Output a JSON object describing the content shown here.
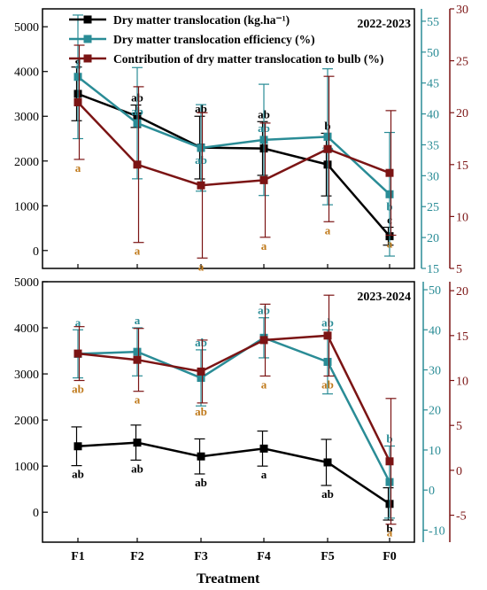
{
  "colors": {
    "s1": "#000000",
    "s2": "#2a8c96",
    "s3": "#7b1414",
    "letter_black": "#000000",
    "letter_teal": "#2a8c96",
    "letter_gold": "#c07a1c"
  },
  "legend": [
    {
      "label": "Dry matter translocation (kg.ha⁻¹)"
    },
    {
      "label": "Dry matter translocation efficiency (%)"
    },
    {
      "label": "Contribution of dry matter translocation to bulb (%)"
    }
  ],
  "xlabel": "Treatment",
  "chart_data": [
    {
      "type": "line",
      "title": "2022-2023",
      "categories": [
        "F1",
        "F2",
        "F3",
        "F4",
        "F5",
        "F0"
      ],
      "xlabel": "Treatment",
      "axes": {
        "left": {
          "range": [
            -400,
            5400
          ],
          "ticks": [
            0,
            1000,
            2000,
            3000,
            4000,
            5000
          ]
        },
        "right1": {
          "range": [
            15,
            57
          ],
          "ticks": [
            15,
            20,
            25,
            30,
            35,
            40,
            45,
            50,
            55
          ]
        },
        "right2": {
          "range": [
            5,
            30
          ],
          "ticks": [
            5,
            10,
            15,
            20,
            25,
            30
          ]
        }
      },
      "series": [
        {
          "axis": "left",
          "color_key": "s1",
          "values": [
            3500,
            3000,
            2300,
            2280,
            1920,
            320
          ],
          "err": [
            600,
            250,
            700,
            600,
            700,
            200
          ],
          "letters": [
            "a",
            "ab",
            "ab",
            "ab",
            "b",
            "c"
          ],
          "letter_pos": [
            "above",
            "above",
            "above",
            "above",
            "above",
            "above"
          ],
          "letter_color": "letter_black"
        },
        {
          "axis": "right1",
          "color_key": "s2",
          "values": [
            46,
            38.5,
            34.5,
            35.8,
            36.3,
            27
          ],
          "err": [
            10,
            9,
            7,
            9,
            11,
            10
          ],
          "letters": [
            "a",
            "ab",
            "ab",
            "ab",
            "ab",
            "b"
          ],
          "letter_pos": [
            "above_pt",
            "above_pt",
            "below_pt",
            "above_pt",
            "below_pt",
            "below_pt"
          ],
          "letter_color": "letter_teal"
        },
        {
          "axis": "right2",
          "color_key": "s3",
          "values": [
            21,
            15,
            13,
            13.5,
            16.5,
            14.2
          ],
          "err": [
            5.5,
            7.5,
            7,
            5.5,
            7,
            6
          ],
          "letters": [
            "a",
            "a",
            "a",
            "a",
            "a",
            "a"
          ],
          "letter_pos": [
            "below",
            "below",
            "below",
            "below",
            "below",
            "below"
          ],
          "letter_color": "letter_gold"
        }
      ]
    },
    {
      "type": "line",
      "title": "2023-2024",
      "categories": [
        "F1",
        "F2",
        "F3",
        "F4",
        "F5",
        "F0"
      ],
      "xlabel": "Treatment",
      "axes": {
        "left": {
          "range": [
            -650,
            5000
          ],
          "ticks": [
            0,
            1000,
            2000,
            3000,
            4000,
            5000
          ]
        },
        "right1": {
          "range": [
            -13,
            52
          ],
          "ticks": [
            -10,
            0,
            10,
            20,
            30,
            40,
            50
          ]
        },
        "right2": {
          "range": [
            -8,
            21
          ],
          "ticks": [
            -5,
            0,
            5,
            10,
            15,
            20
          ]
        }
      },
      "series": [
        {
          "axis": "left",
          "color_key": "s1",
          "values": [
            1430,
            1510,
            1210,
            1380,
            1080,
            180
          ],
          "err": [
            420,
            380,
            380,
            380,
            500,
            350
          ],
          "letters": [
            "ab",
            "ab",
            "ab",
            "a",
            "ab",
            "b"
          ],
          "letter_pos": [
            "below",
            "below",
            "below",
            "below",
            "below",
            "below"
          ],
          "letter_color": "letter_black"
        },
        {
          "axis": "right1",
          "color_key": "s2",
          "values": [
            34,
            34.5,
            28,
            38,
            32,
            2
          ],
          "err": [
            6,
            6,
            7,
            5,
            8,
            9
          ],
          "letters": [
            "a",
            "a",
            "ab",
            "ab",
            "ab",
            "b"
          ],
          "letter_pos": [
            "above",
            "above",
            "above",
            "above",
            "above",
            "above"
          ],
          "letter_color": "letter_teal"
        },
        {
          "axis": "right2",
          "color_key": "s3",
          "values": [
            13,
            12.3,
            11,
            14.5,
            15,
            1
          ],
          "err": [
            3,
            3.5,
            3.5,
            4,
            4.5,
            7
          ],
          "letters": [
            "ab",
            "a",
            "ab",
            "a",
            "ab",
            "a"
          ],
          "letter_pos": [
            "below",
            "below",
            "below",
            "below",
            "below",
            "below"
          ],
          "letter_color": "letter_gold"
        }
      ]
    }
  ]
}
